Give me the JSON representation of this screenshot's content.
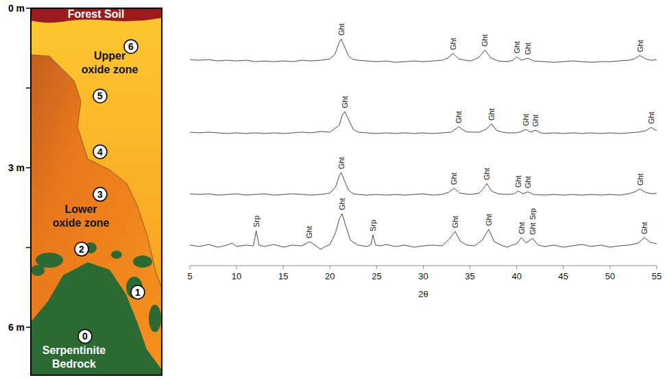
{
  "chart_data": [
    {
      "type": "line",
      "color": "#333333",
      "xlim": [
        5,
        55
      ],
      "ylim": [
        0,
        100
      ],
      "tick_labels": false,
      "x": [
        5,
        6,
        7,
        8,
        9,
        10,
        11,
        12,
        13,
        14,
        15,
        16,
        17,
        18,
        19,
        20,
        20.5,
        21,
        21.2,
        21.5,
        22,
        22.5,
        23,
        24,
        25,
        26,
        27,
        28,
        29,
        30,
        31,
        32,
        32.6,
        33.2,
        33.8,
        34.5,
        35,
        35.5,
        36,
        36.6,
        37.2,
        38,
        39,
        39.6,
        40,
        40.5,
        41.2,
        41.8,
        43,
        44,
        45,
        46,
        47,
        48,
        49,
        50,
        51,
        52,
        52.6,
        53.2,
        53.8,
        54.5,
        55
      ],
      "values": [
        13,
        12,
        13,
        11,
        12,
        11,
        12,
        10,
        11,
        10,
        11,
        10,
        12,
        11,
        12,
        14,
        20,
        38,
        43,
        34,
        18,
        13,
        12,
        11,
        10,
        11,
        9,
        10,
        11,
        10,
        11,
        12,
        15,
        22,
        14,
        12,
        11,
        13,
        17,
        27,
        16,
        11,
        10,
        12,
        17,
        12,
        15,
        11,
        10,
        9,
        10,
        11,
        10,
        9,
        10,
        10,
        11,
        12,
        14,
        19,
        14,
        12,
        13
      ],
      "annotations": [
        {
          "text": "Ght",
          "x": 21.2
        },
        {
          "text": "Ght",
          "x": 33.2
        },
        {
          "text": "Ght",
          "x": 36.6
        },
        {
          "text": "Ght",
          "x": 40.0
        },
        {
          "text": "Ght",
          "x": 41.2
        },
        {
          "text": "Ght",
          "x": 53.2
        }
      ]
    },
    {
      "type": "line",
      "color": "#333333",
      "xlim": [
        5,
        55
      ],
      "ylim": [
        0,
        100
      ],
      "tick_labels": false,
      "x": [
        5,
        6,
        7,
        8,
        9,
        10,
        11,
        12,
        13,
        14,
        15,
        16,
        17,
        18,
        19,
        20,
        21,
        21.3,
        21.6,
        22,
        22.5,
        23,
        24,
        25,
        26,
        27,
        28,
        29,
        30,
        31,
        32,
        33,
        33.8,
        34.5,
        35,
        36,
        36.7,
        37.3,
        37.9,
        38.5,
        39,
        40,
        40.5,
        41,
        41.5,
        42,
        42.6,
        43,
        44,
        45,
        46,
        47,
        48,
        49,
        50,
        51,
        52,
        53,
        53.8,
        54.4,
        55
      ],
      "values": [
        12,
        11,
        12,
        11,
        10,
        11,
        10,
        11,
        10,
        11,
        10,
        11,
        12,
        11,
        13,
        12,
        22,
        36,
        42,
        30,
        16,
        12,
        11,
        10,
        11,
        10,
        11,
        10,
        11,
        10,
        11,
        12,
        20,
        13,
        12,
        12,
        16,
        24,
        14,
        12,
        11,
        11,
        13,
        16,
        12,
        15,
        11,
        10,
        11,
        10,
        11,
        10,
        11,
        10,
        11,
        10,
        11,
        12,
        14,
        19,
        14
      ],
      "annotations": [
        {
          "text": "Ght",
          "x": 21.6
        },
        {
          "text": "Ght",
          "x": 33.8
        },
        {
          "text": "Ght",
          "x": 37.3
        },
        {
          "text": "Ght",
          "x": 41.0
        },
        {
          "text": "Ght",
          "x": 42.0
        },
        {
          "text": "Ght",
          "x": 54.4
        }
      ]
    },
    {
      "type": "line",
      "color": "#333333",
      "xlim": [
        5,
        55
      ],
      "ylim": [
        0,
        100
      ],
      "tick_labels": false,
      "x": [
        5,
        6,
        7,
        8,
        9,
        10,
        11,
        12,
        13,
        14,
        15,
        16,
        17,
        18,
        19,
        20,
        20.6,
        21,
        21.2,
        21.5,
        22,
        22.5,
        23,
        24,
        25,
        26,
        27,
        28,
        29,
        30,
        31,
        32,
        32.7,
        33.3,
        33.9,
        34.5,
        35,
        36,
        36.4,
        36.8,
        37.3,
        38,
        39,
        39.7,
        40.2,
        40.7,
        41.2,
        41.8,
        43,
        44,
        45,
        46,
        47,
        48,
        49,
        50,
        51,
        52,
        52.7,
        53.2,
        53.8,
        54.5,
        55
      ],
      "values": [
        12,
        11,
        12,
        10,
        11,
        12,
        10,
        11,
        12,
        10,
        11,
        12,
        11,
        10,
        11,
        13,
        22,
        38,
        43,
        33,
        17,
        12,
        11,
        10,
        11,
        10,
        11,
        10,
        11,
        12,
        10,
        11,
        14,
        20,
        13,
        12,
        11,
        13,
        19,
        27,
        16,
        12,
        11,
        12,
        16,
        12,
        15,
        11,
        10,
        11,
        10,
        11,
        10,
        11,
        10,
        11,
        10,
        12,
        15,
        19,
        14,
        12,
        13
      ],
      "annotations": [
        {
          "text": "Ght",
          "x": 21.2
        },
        {
          "text": "Ght",
          "x": 33.3
        },
        {
          "text": "Ght",
          "x": 36.8
        },
        {
          "text": "Ght",
          "x": 40.2
        },
        {
          "text": "Ght",
          "x": 41.2
        },
        {
          "text": "Ght",
          "x": 53.2
        }
      ]
    },
    {
      "type": "line",
      "color": "#333333",
      "xlim": [
        5,
        55
      ],
      "ylim": [
        0,
        100
      ],
      "tick_labels": "x",
      "x_label": "2θ",
      "xticks": [
        5,
        10,
        15,
        20,
        25,
        30,
        35,
        40,
        45,
        50,
        55
      ],
      "x": [
        5,
        6,
        7,
        8,
        9,
        9.5,
        10,
        11,
        11.8,
        12.1,
        12.4,
        13,
        14,
        15,
        16,
        17,
        17.8,
        18.5,
        19,
        19.5,
        20,
        20.6,
        21,
        21.3,
        21.7,
        22.2,
        23,
        24,
        24.4,
        24.6,
        24.9,
        25.5,
        26,
        27,
        28,
        29,
        30,
        31,
        32,
        32.8,
        33.4,
        34,
        34.7,
        35.5,
        36.3,
        37,
        37.6,
        38.5,
        39,
        39.5,
        40,
        40.5,
        41,
        41.7,
        42.3,
        43,
        44,
        45,
        46,
        47,
        48,
        49,
        50,
        51,
        52,
        53,
        53.7,
        54.3,
        55
      ],
      "values": [
        17,
        15,
        18,
        14,
        17,
        20,
        15,
        17,
        16,
        38,
        17,
        15,
        18,
        14,
        17,
        16,
        22,
        16,
        11,
        15,
        18,
        35,
        55,
        63,
        45,
        24,
        17,
        15,
        18,
        32,
        17,
        16,
        18,
        15,
        17,
        14,
        16,
        17,
        16,
        26,
        37,
        22,
        17,
        16,
        24,
        40,
        22,
        16,
        14,
        17,
        19,
        28,
        20,
        27,
        17,
        15,
        17,
        14,
        16,
        18,
        15,
        17,
        14,
        16,
        17,
        20,
        28,
        21,
        19
      ],
      "annotations": [
        {
          "text": "Srp",
          "x": 12.1
        },
        {
          "text": "Ght",
          "x": 17.8
        },
        {
          "text": "Ght",
          "x": 21.3
        },
        {
          "text": "Srp",
          "x": 24.6
        },
        {
          "text": "Ght",
          "x": 33.4
        },
        {
          "text": "Ght",
          "x": 37.0
        },
        {
          "text": "Ght",
          "x": 40.5
        },
        {
          "text": "Ght",
          "x": 41.7
        },
        {
          "text": "Srp",
          "x": 41.7
        },
        {
          "text": "Ght",
          "x": 53.7
        }
      ]
    }
  ],
  "profile": {
    "depth_lim": [
      0,
      6.9
    ],
    "depth_ticks": [
      0,
      1.5,
      3,
      4.5,
      6
    ],
    "depth_labels": [
      {
        "value": 0,
        "label": "0 m"
      },
      {
        "value": 3,
        "label": "3 m"
      },
      {
        "value": 6,
        "label": "6 m"
      }
    ],
    "zones": [
      {
        "lines": [
          "Forest Soil"
        ]
      },
      {
        "lines": [
          "Upper",
          "oxide zone"
        ]
      },
      {
        "lines": [
          "Lower",
          "oxide zone"
        ]
      },
      {
        "lines": [
          "Serpentinite",
          "Bedrock"
        ]
      }
    ],
    "samples": [
      {
        "label": "0",
        "depth": 6.17
      },
      {
        "label": "1",
        "depth": 5.34
      },
      {
        "label": "2",
        "depth": 4.53
      },
      {
        "label": "3",
        "depth": 3.5
      },
      {
        "label": "4",
        "depth": 2.7
      },
      {
        "label": "5",
        "depth": 1.65
      },
      {
        "label": "6",
        "depth": 0.72
      }
    ]
  }
}
